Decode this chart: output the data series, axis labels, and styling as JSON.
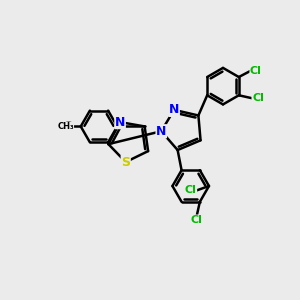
{
  "bg_color": "#ebebeb",
  "bond_color": "#000000",
  "bond_width": 1.8,
  "S_color": "#cccc00",
  "N_color": "#0000ff",
  "O_color": "#ff0000",
  "Cl_color": "#00bb00",
  "font_size": 8,
  "fig_size": [
    3.0,
    3.0
  ],
  "dpi": 100,
  "xlim": [
    0,
    10
  ],
  "ylim": [
    0,
    10
  ]
}
